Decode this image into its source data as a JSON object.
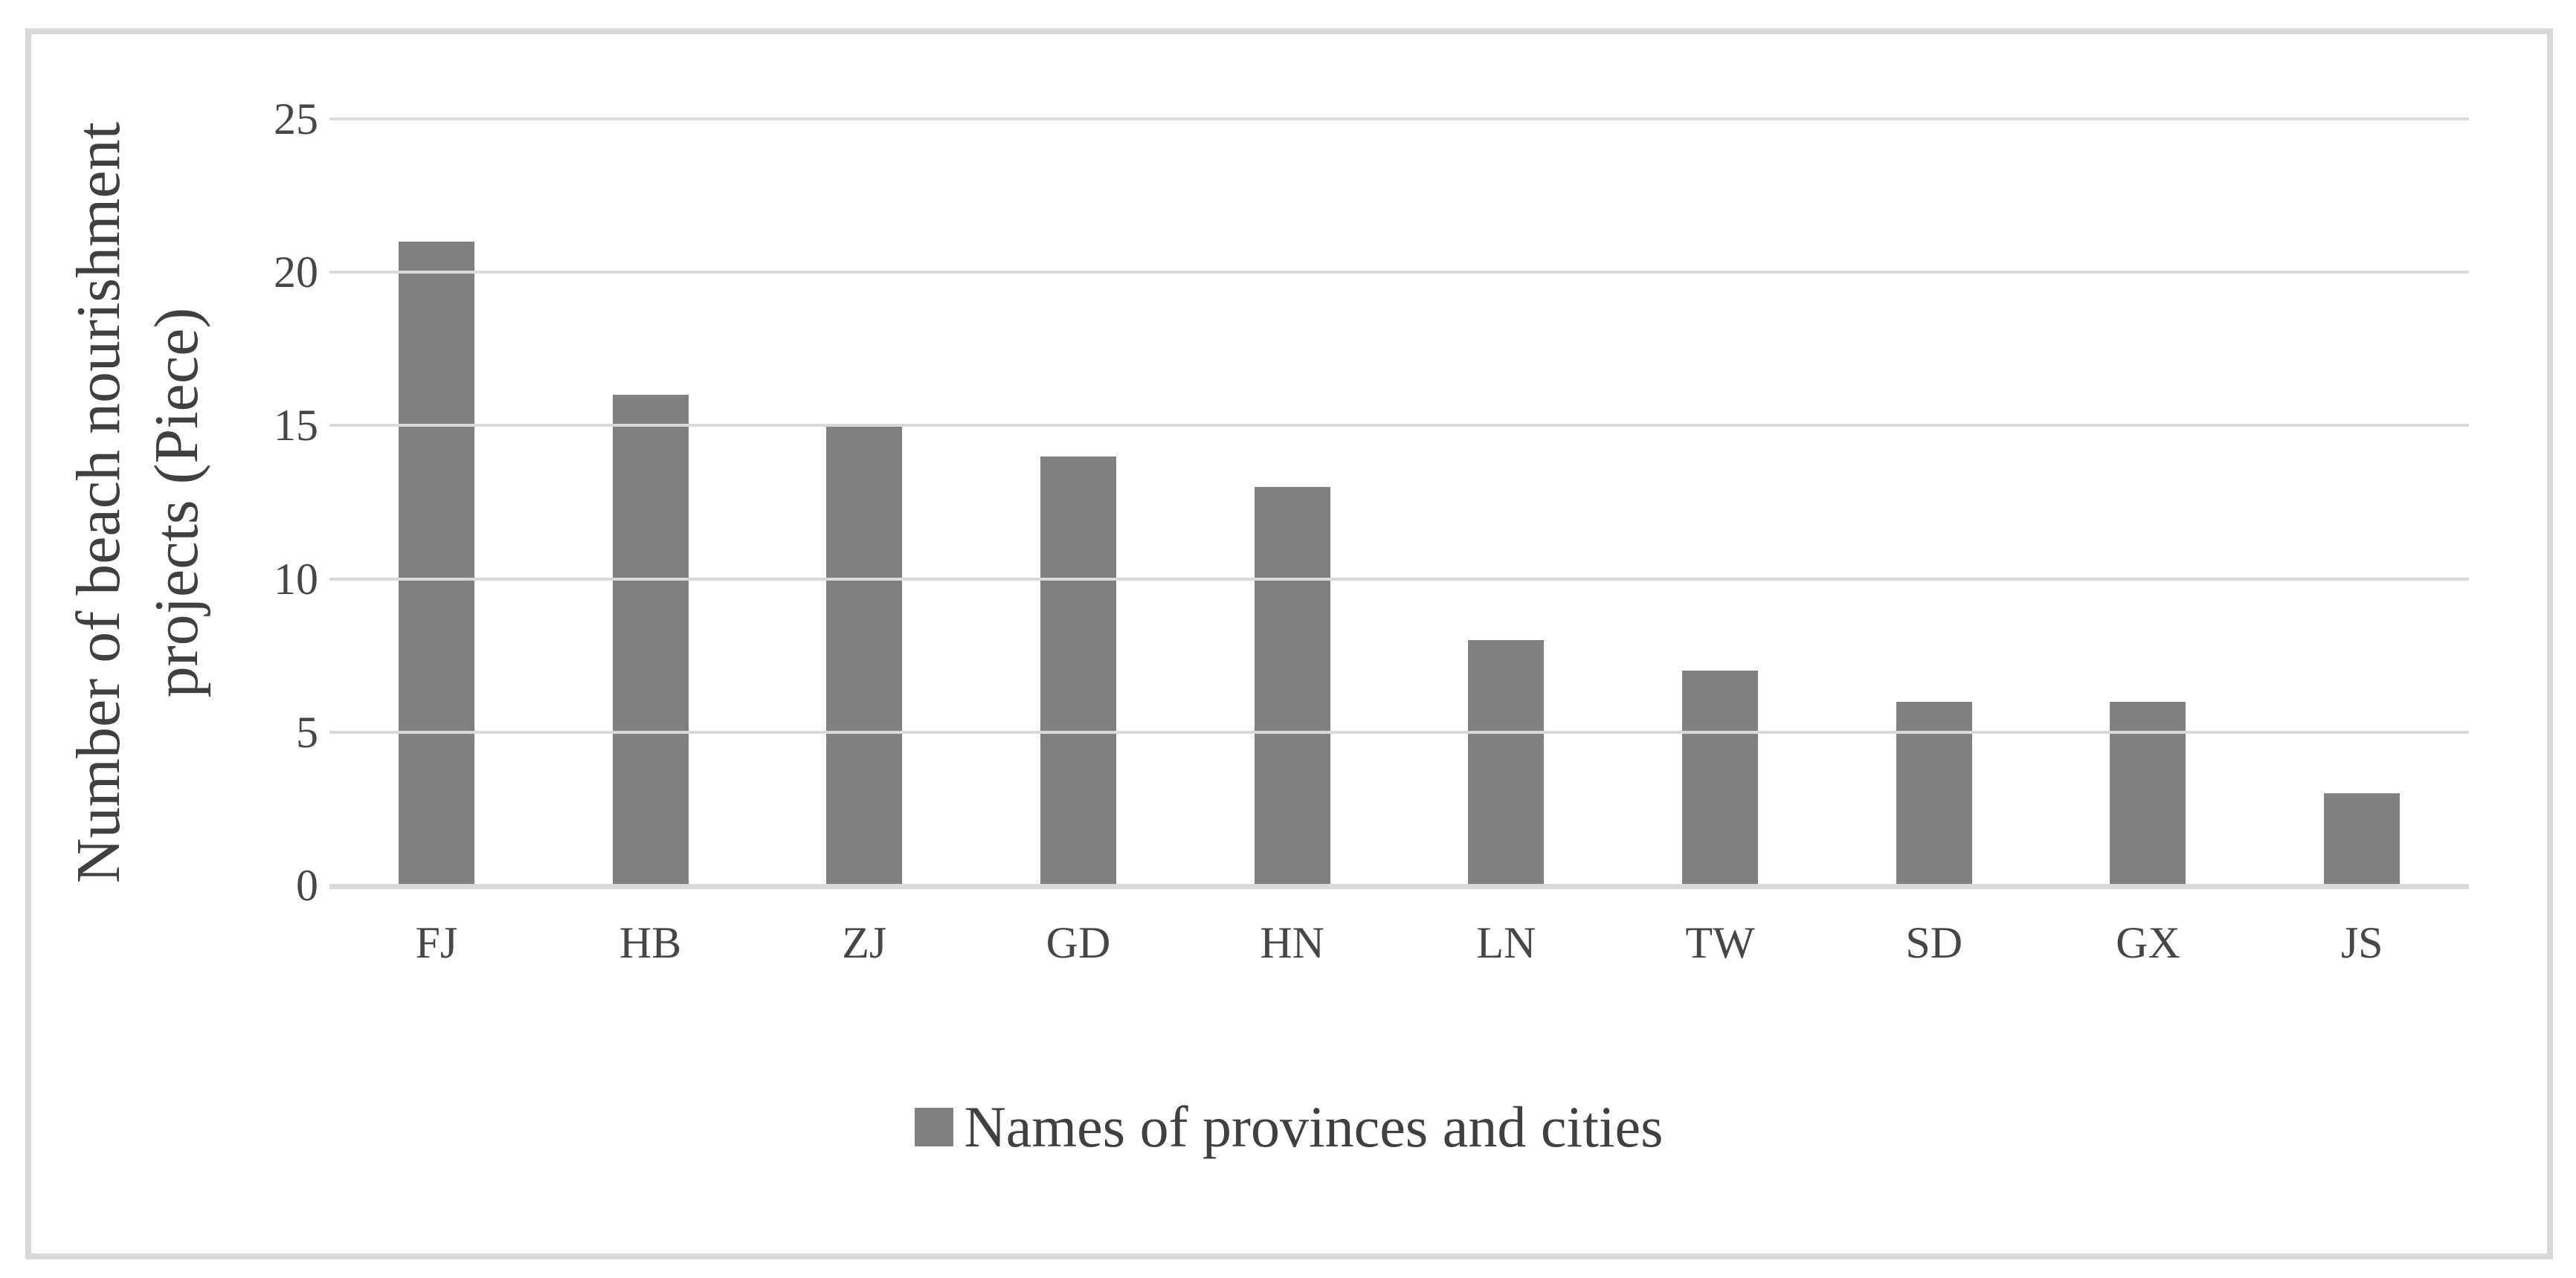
{
  "chart_data": {
    "type": "bar",
    "categories": [
      "FJ",
      "HB",
      "ZJ",
      "GD",
      "HN",
      "LN",
      "TW",
      "SD",
      "GX",
      "JS"
    ],
    "values": [
      21,
      16,
      15,
      14,
      13,
      8,
      7,
      6,
      6,
      3
    ],
    "title": "",
    "xlabel": "",
    "ylabel": "Number of beach nourishment projects (Piece)",
    "ylabel_lines": [
      "Number of beach nourishment",
      "projects (Piece)"
    ],
    "ylim": [
      0,
      25
    ],
    "yticks": [
      0,
      5,
      10,
      15,
      20,
      25
    ],
    "grid": true,
    "legend": {
      "position": "bottom",
      "label": "Names of provinces and cities",
      "marker_color": "#808080"
    },
    "series_name": "Names of provinces and cities",
    "bar_color": "#808080",
    "gridline_color": "#d9d9d9",
    "axis_line_color": "#d9d9d9",
    "border_color": "#d9d9d9",
    "text_color": "#464646"
  }
}
